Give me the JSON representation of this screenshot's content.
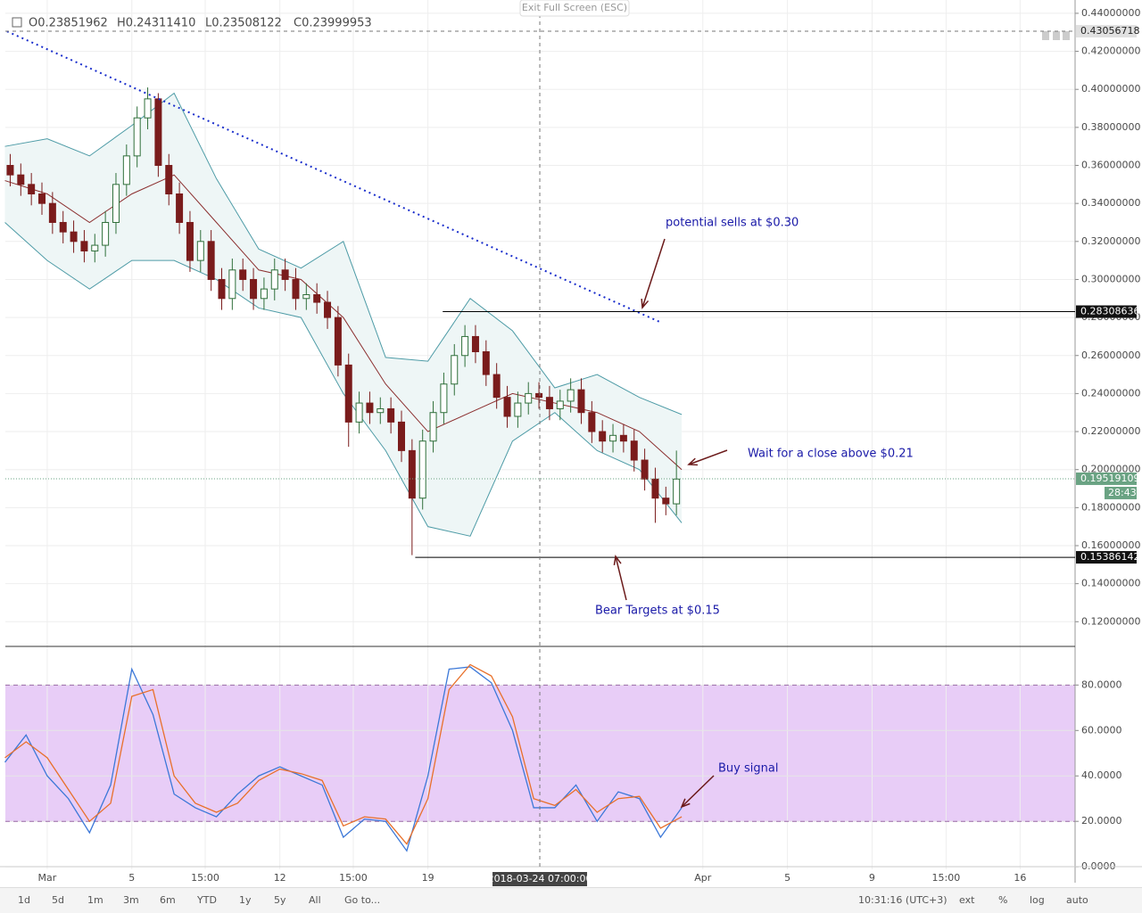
{
  "chart_data": [
    {
      "type": "candlestick",
      "ohlc_legend": [
        "O0.23851962",
        "H0.24311410",
        "L0.23508122",
        "C0.23999953"
      ],
      "x": [
        -1.75,
        -1.25,
        -0.75,
        -0.25,
        0.25,
        0.75,
        1.25,
        1.75,
        2.25,
        2.75,
        3.25,
        3.75,
        4.25,
        4.75,
        5.25,
        5.75,
        6.25,
        6.75,
        7.25,
        7.75,
        8.25,
        8.75,
        9.25,
        9.75,
        10.25,
        10.75,
        11.25,
        11.75,
        12.25,
        12.75,
        13.25,
        13.75,
        14.25,
        14.75,
        15.25,
        15.75,
        16.25,
        16.75,
        17.25,
        17.75,
        18.25,
        18.75,
        19.25,
        19.75,
        20.25,
        20.75,
        21.25,
        21.75,
        22.25,
        22.75,
        23.25,
        23.75,
        24.25,
        24.75,
        25.25,
        25.75,
        26.25,
        26.75,
        27.25,
        27.75,
        28.25,
        28.75,
        29.25,
        29.75
      ],
      "open": [
        0.36,
        0.355,
        0.35,
        0.345,
        0.34,
        0.33,
        0.325,
        0.32,
        0.315,
        0.318,
        0.33,
        0.35,
        0.365,
        0.385,
        0.395,
        0.36,
        0.345,
        0.33,
        0.31,
        0.32,
        0.3,
        0.29,
        0.305,
        0.3,
        0.29,
        0.295,
        0.305,
        0.3,
        0.29,
        0.292,
        0.288,
        0.28,
        0.255,
        0.225,
        0.235,
        0.23,
        0.232,
        0.225,
        0.21,
        0.185,
        0.215,
        0.23,
        0.245,
        0.26,
        0.27,
        0.262,
        0.25,
        0.238,
        0.228,
        0.235,
        0.24,
        0.238,
        0.232,
        0.236,
        0.242,
        0.23,
        0.22,
        0.215,
        0.218,
        0.215,
        0.205,
        0.195,
        0.185,
        0.182
      ],
      "high": [
        0.366,
        0.361,
        0.356,
        0.351,
        0.346,
        0.336,
        0.331,
        0.326,
        0.324,
        0.336,
        0.356,
        0.371,
        0.391,
        0.401,
        0.398,
        0.366,
        0.351,
        0.336,
        0.326,
        0.326,
        0.306,
        0.311,
        0.311,
        0.306,
        0.301,
        0.311,
        0.311,
        0.306,
        0.298,
        0.298,
        0.294,
        0.286,
        0.261,
        0.241,
        0.241,
        0.238,
        0.238,
        0.231,
        0.216,
        0.221,
        0.236,
        0.251,
        0.266,
        0.276,
        0.276,
        0.268,
        0.256,
        0.244,
        0.241,
        0.246,
        0.246,
        0.244,
        0.242,
        0.248,
        0.248,
        0.236,
        0.226,
        0.224,
        0.224,
        0.221,
        0.211,
        0.201,
        0.191,
        0.21
      ],
      "low": [
        0.349,
        0.344,
        0.339,
        0.334,
        0.324,
        0.319,
        0.314,
        0.309,
        0.309,
        0.312,
        0.324,
        0.344,
        0.359,
        0.379,
        0.354,
        0.339,
        0.324,
        0.304,
        0.304,
        0.294,
        0.284,
        0.284,
        0.294,
        0.284,
        0.284,
        0.289,
        0.294,
        0.284,
        0.284,
        0.282,
        0.274,
        0.249,
        0.212,
        0.219,
        0.224,
        0.224,
        0.219,
        0.204,
        0.155,
        0.179,
        0.209,
        0.224,
        0.239,
        0.254,
        0.256,
        0.244,
        0.232,
        0.222,
        0.222,
        0.229,
        0.232,
        0.226,
        0.226,
        0.23,
        0.224,
        0.214,
        0.209,
        0.209,
        0.209,
        0.199,
        0.189,
        0.172,
        0.176,
        0.176
      ],
      "close": [
        0.355,
        0.35,
        0.345,
        0.34,
        0.33,
        0.325,
        0.32,
        0.315,
        0.318,
        0.33,
        0.35,
        0.365,
        0.385,
        0.395,
        0.36,
        0.345,
        0.33,
        0.31,
        0.32,
        0.3,
        0.29,
        0.305,
        0.3,
        0.29,
        0.295,
        0.305,
        0.3,
        0.29,
        0.292,
        0.288,
        0.28,
        0.255,
        0.225,
        0.235,
        0.23,
        0.232,
        0.225,
        0.21,
        0.185,
        0.215,
        0.23,
        0.245,
        0.26,
        0.27,
        0.262,
        0.25,
        0.238,
        0.228,
        0.235,
        0.24,
        0.238,
        0.232,
        0.236,
        0.242,
        0.23,
        0.22,
        0.215,
        0.218,
        0.215,
        0.205,
        0.195,
        0.185,
        0.182,
        0.195
      ],
      "up_color": "#2f6f3a",
      "down_color": "#7a1c1c",
      "bands": {
        "x": [
          -2,
          0,
          2,
          4,
          6,
          8,
          10,
          12,
          14,
          16,
          18,
          20,
          22,
          24,
          26,
          28,
          30
        ],
        "upper": [
          0.37,
          0.374,
          0.365,
          0.381,
          0.398,
          0.353,
          0.316,
          0.306,
          0.32,
          0.259,
          0.257,
          0.29,
          0.273,
          0.243,
          0.25,
          0.238,
          0.229
        ],
        "middle": [
          0.352,
          0.345,
          0.33,
          0.345,
          0.355,
          0.33,
          0.305,
          0.3,
          0.28,
          0.245,
          0.22,
          0.23,
          0.24,
          0.235,
          0.23,
          0.22,
          0.2
        ],
        "lower": [
          0.33,
          0.31,
          0.295,
          0.31,
          0.31,
          0.3,
          0.285,
          0.28,
          0.24,
          0.21,
          0.17,
          0.165,
          0.215,
          0.23,
          0.21,
          0.2,
          0.172
        ],
        "color": "#4d9ba6",
        "middle_color": "#8b2e2e",
        "fill": "#eef6f6"
      },
      "trend_line": {
        "x": [
          -1.9,
          29
        ],
        "values": [
          0.4305,
          0.2775
        ],
        "color": "#1a2ecc"
      },
      "levels": [
        {
          "x_start": 18.7,
          "value": 0.28308636,
          "label": "0.28308636"
        },
        {
          "x_start": 17.4,
          "value": 0.15386142,
          "label": "0.15386142"
        }
      ],
      "last_price": {
        "value": 0.19519109,
        "label": "0.19519109",
        "countdown": "28:43",
        "color": "#6aa383"
      },
      "crosshair": {
        "x": 23.29,
        "x_label": "2018-03-24 07:00:00",
        "value": 0.43056718,
        "label": "0.43056718"
      },
      "annotations": [
        "potential sells at $0.30",
        "Wait for a close above $0.21",
        "Bear Targets at $0.15"
      ],
      "xlim": [
        -1.98,
        48.6
      ],
      "ylim": [
        0.107,
        0.447
      ],
      "xticks": [
        {
          "value": 0,
          "label": "Mar"
        },
        {
          "value": 4,
          "label": "5"
        },
        {
          "value": 7.47,
          "label": "15:00"
        },
        {
          "value": 11,
          "label": "12"
        },
        {
          "value": 14.47,
          "label": "15:00"
        },
        {
          "value": 18,
          "label": "19"
        },
        {
          "value": 31,
          "label": "Apr"
        },
        {
          "value": 35,
          "label": "5"
        },
        {
          "value": 39,
          "label": "9"
        },
        {
          "value": 42.5,
          "label": "15:00"
        },
        {
          "value": 46,
          "label": "16"
        }
      ],
      "yticks": [
        {
          "value": 0.12,
          "label": "0.12000000"
        },
        {
          "value": 0.14,
          "label": "0.14000000"
        },
        {
          "value": 0.16,
          "label": "0.16000000"
        },
        {
          "value": 0.18,
          "label": "0.18000000"
        },
        {
          "value": 0.2,
          "label": "0.20000000"
        },
        {
          "value": 0.22,
          "label": "0.22000000"
        },
        {
          "value": 0.24,
          "label": "0.24000000"
        },
        {
          "value": 0.26,
          "label": "0.26000000"
        },
        {
          "value": 0.28,
          "label": "0.28000000"
        },
        {
          "value": 0.3,
          "label": "0.30000000"
        },
        {
          "value": 0.32,
          "label": "0.32000000"
        },
        {
          "value": 0.34,
          "label": "0.34000000"
        },
        {
          "value": 0.36,
          "label": "0.36000000"
        },
        {
          "value": 0.38,
          "label": "0.38000000"
        },
        {
          "value": 0.4,
          "label": "0.40000000"
        },
        {
          "value": 0.42,
          "label": "0.42000000"
        },
        {
          "value": 0.44,
          "label": "0.44000000"
        }
      ],
      "grid": true
    },
    {
      "type": "line",
      "x": [
        -2,
        -1,
        0,
        1,
        2,
        3,
        4,
        5,
        6,
        7,
        8,
        9,
        10,
        11,
        12,
        13,
        14,
        15,
        16,
        17,
        18,
        19,
        20,
        21,
        22,
        23,
        24,
        25,
        26,
        27,
        28,
        29,
        30
      ],
      "series": [
        {
          "color": "#3c78d8",
          "values": [
            46,
            58,
            40,
            30,
            15,
            36,
            87,
            67,
            32,
            26,
            22,
            32,
            40,
            44,
            40,
            36,
            13,
            21,
            20,
            7,
            40,
            87,
            88,
            81,
            60,
            26,
            26,
            36,
            20,
            33,
            30,
            13,
            26
          ]
        },
        {
          "color": "#e8702a",
          "values": [
            48,
            55,
            48,
            34,
            20,
            28,
            75,
            78,
            40,
            28,
            24,
            28,
            38,
            43,
            41,
            38,
            18,
            22,
            21,
            10,
            30,
            78,
            89,
            84,
            66,
            30,
            27,
            34,
            24,
            30,
            31,
            17,
            22
          ]
        }
      ],
      "oversold": 20,
      "overbought": 80,
      "band_color": "#e8cdf7",
      "annotations": [
        "Buy signal"
      ],
      "ylim": [
        -7,
        97
      ],
      "yticks": [
        {
          "value": 0,
          "label": "0.0000"
        },
        {
          "value": 20,
          "label": "20.0000"
        },
        {
          "value": 40,
          "label": "40.0000"
        },
        {
          "value": 60,
          "label": "60.0000"
        },
        {
          "value": 80,
          "label": "80.0000"
        }
      ],
      "grid": true
    }
  ],
  "ui": {
    "exit_button": "Exit Full Screen (ESC)",
    "toolbar_left": [
      "1d",
      "5d",
      "1m",
      "3m",
      "6m",
      "YTD",
      "1y",
      "5y",
      "All",
      "Go to..."
    ],
    "clock": "10:31:16 (UTC+3)",
    "toolbar_right": [
      "ext",
      "%",
      "log",
      "auto"
    ]
  }
}
